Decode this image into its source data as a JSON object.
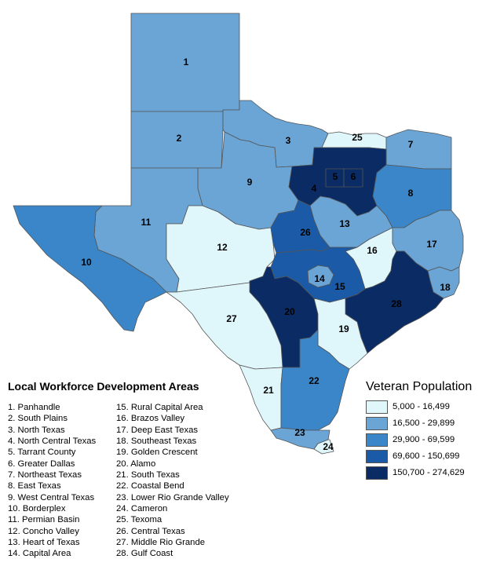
{
  "legend": {
    "title": "Local Workforce Development Areas",
    "areas_col1": [
      "1. Panhandle",
      "2. South Plains",
      "3. North Texas",
      "4. North Central Texas",
      "5. Tarrant County",
      "6. Greater Dallas",
      "7. Northeast Texas",
      "8. East Texas",
      "9. West Central Texas",
      "10. Borderplex",
      "11. Permian Basin",
      "12. Concho Valley",
      "13. Heart of Texas",
      "14. Capital Area"
    ],
    "areas_col2": [
      "15. Rural Capital Area",
      "16. Brazos Valley",
      "17. Deep East Texas",
      "18. Southeast Texas",
      "19. Golden Crescent",
      "20. Alamo",
      "21. South Texas",
      "22. Coastal Bend",
      "23. Lower Rio Grande Valley",
      "24. Cameron",
      "25. Texoma",
      "26. Central Texas",
      "27. Middle Rio Grande",
      "28. Gulf Coast"
    ]
  },
  "veteran_legend": {
    "title": "Veteran Population",
    "classes": [
      {
        "label": "5,000 - 16,499",
        "color": "#dff6fb"
      },
      {
        "label": "16,500 - 29,899",
        "color": "#6aa5d6"
      },
      {
        "label": "29,900 - 69,599",
        "color": "#3a86c8"
      },
      {
        "label": "69,600 - 150,699",
        "color": "#1a5aa6"
      },
      {
        "label": "150,700 - 274,629",
        "color": "#0a2b63"
      }
    ]
  },
  "regions": {
    "r1": "1",
    "r2": "2",
    "r3": "3",
    "r4": "4",
    "r5": "5",
    "r6": "6",
    "r7": "7",
    "r8": "8",
    "r9": "9",
    "r10": "10",
    "r11": "11",
    "r12": "12",
    "r13": "13",
    "r14": "14",
    "r15": "15",
    "r16": "16",
    "r17": "17",
    "r18": "18",
    "r19": "19",
    "r20": "20",
    "r21": "21",
    "r22": "22",
    "r23": "23",
    "r24": "24",
    "r25": "25",
    "r26": "26",
    "r27": "27",
    "r28": "28"
  }
}
